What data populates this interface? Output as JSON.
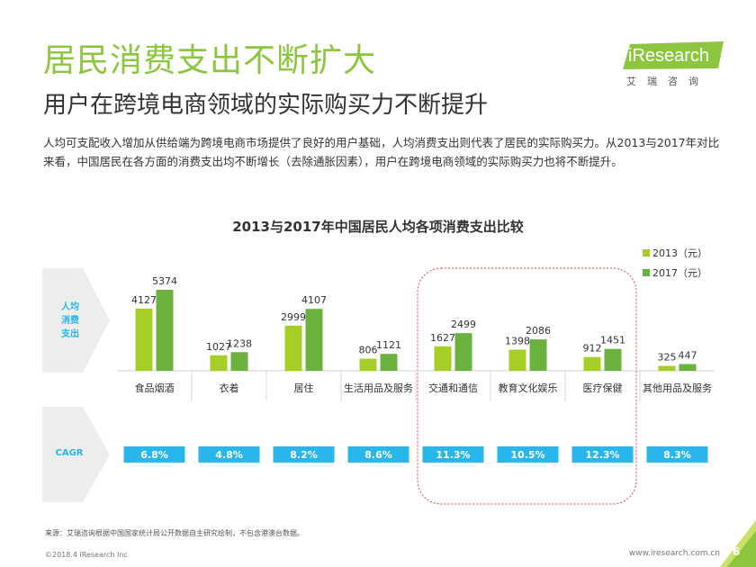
{
  "page": {
    "title": "居民消费支出不断扩大",
    "subtitle": "用户在跨境电商领域的实际购买力不断提升",
    "intro": "人均可支配收入增加从供给端为跨境电商市场提供了良好的用户基础，人均消费支出则代表了居民的实际购买力。从2013与2017年对比来看，中国居民在各方面的消费支出均不断增长（去除通胀因素），用户在跨境电商领域的实际购买力也将不断提升。",
    "logo": "iResearch",
    "logo_sub": "艾瑞咨询",
    "arrow_label_1": "人均消费支出",
    "arrow_label_2": "CAGR",
    "source": "来源：艾瑞咨询根据中国国家统计局公开数据自主研究绘制，不包含港澳台数据。",
    "copyright": "©2018.4 iResearch Inc",
    "url": "www.iresearch.com.cn",
    "page_number": "6",
    "colors": {
      "accent": "#8cc63f",
      "series_2013": "#a5cf27",
      "series_2017": "#6ab23d",
      "cagr": "#29b6ea",
      "highlight": "#e04040"
    }
  },
  "chart_data": {
    "type": "bar",
    "title": "2013与2017年中国居民人均各项消费支出比较",
    "categories": [
      "食品烟酒",
      "衣着",
      "居住",
      "生活用品及服务",
      "交通和通信",
      "教育文化娱乐",
      "医疗保健",
      "其他用品及服务"
    ],
    "series": [
      {
        "name": "2013（元）",
        "values": [
          4127,
          1027,
          2999,
          806,
          1627,
          1398,
          912,
          325
        ]
      },
      {
        "name": "2017（元）",
        "values": [
          5374,
          1238,
          4107,
          1121,
          2499,
          2086,
          1451,
          447
        ]
      }
    ],
    "cagr": [
      "6.8%",
      "4.8%",
      "8.2%",
      "8.6%",
      "11.3%",
      "10.5%",
      "12.3%",
      "8.3%"
    ],
    "highlighted_categories": [
      "交通和通信",
      "教育文化娱乐",
      "医疗保健"
    ],
    "legend_position": "top-right",
    "xlabel": "",
    "ylabel": "",
    "grid": false
  }
}
